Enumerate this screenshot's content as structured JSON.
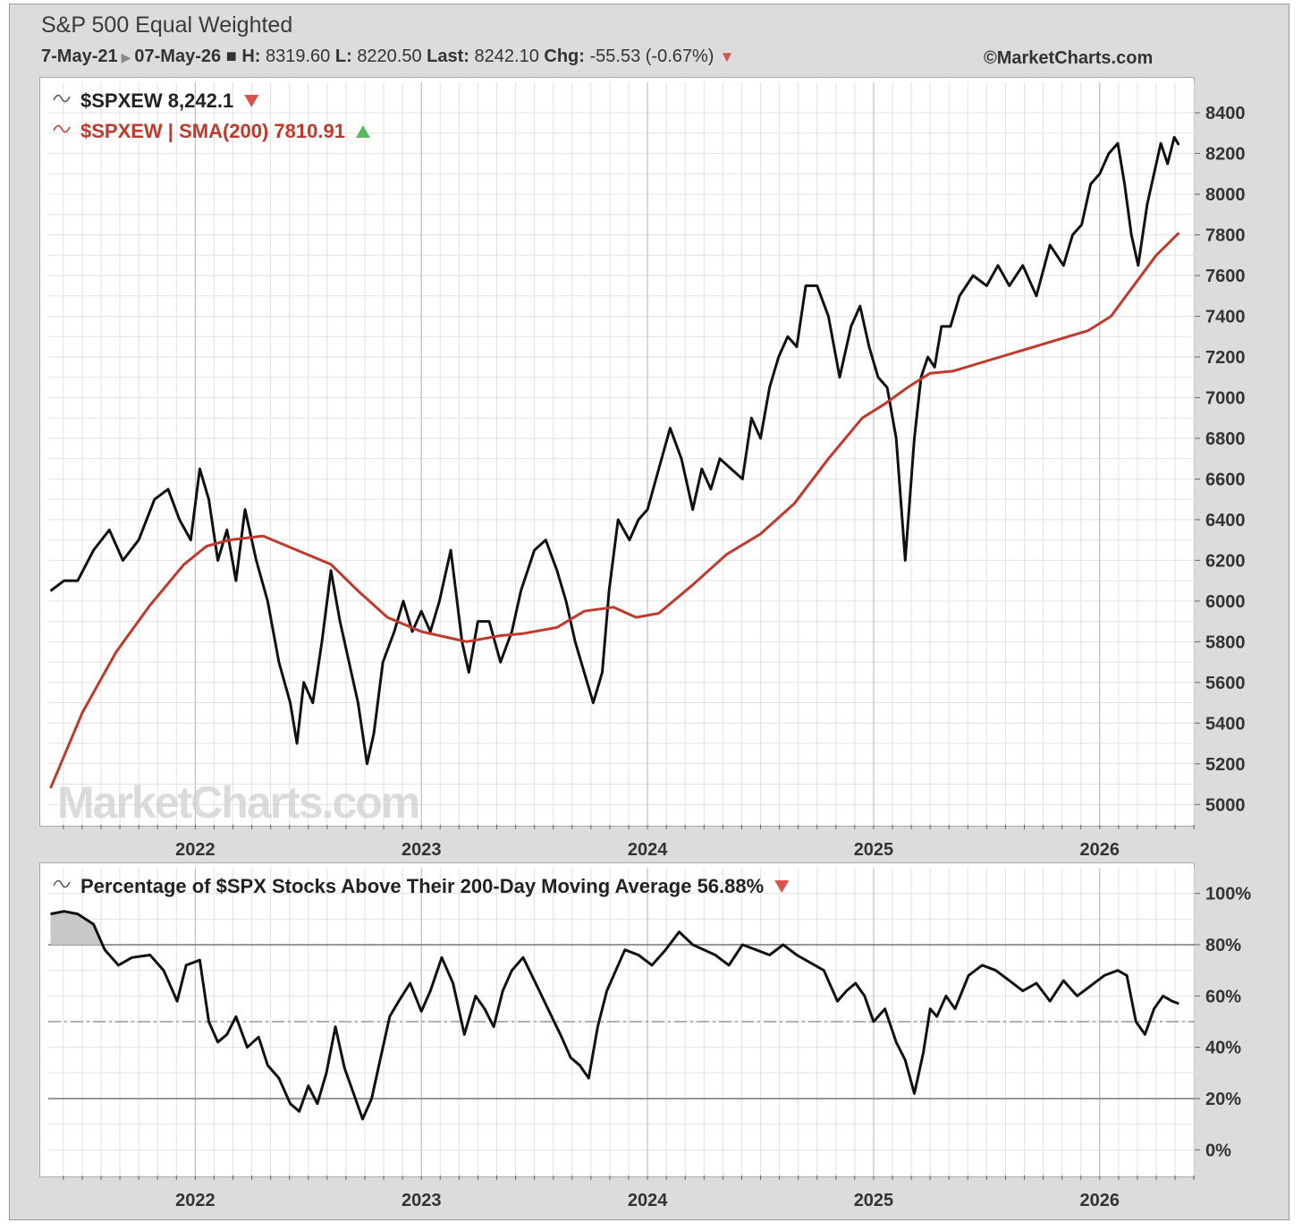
{
  "header": {
    "title": "S&P 500 Equal Weighted",
    "date_start": "7-May-21",
    "date_end": "07-May-26",
    "high_label": "H:",
    "high": "8319.60",
    "low_label": "L:",
    "low": "8220.50",
    "last_label": "Last:",
    "last": "8242.10",
    "chg_label": "Chg:",
    "chg": "-55.53 (-0.67%)",
    "credit": "©MarketCharts.com"
  },
  "watermark": "MarketCharts.com",
  "colors": {
    "price_line": "#111111",
    "sma_line": "#c0392b",
    "down_arrow": "#d9534f",
    "up_arrow": "#5cb85c",
    "grid": "#e2e2e2",
    "major_grid": "#b8b8b8"
  },
  "chart_data": [
    {
      "type": "line",
      "legend": [
        {
          "name": "$SPXEW 8,242.1",
          "color": "#111111",
          "arrow": "down"
        },
        {
          "name": "$SPXEW | SMA(200) 7810.91",
          "color": "#c0392b",
          "arrow": "up"
        }
      ],
      "legend_placement": "top-left",
      "x_ticks": [
        "2022",
        "2023",
        "2024",
        "2025",
        "2026"
      ],
      "y_ticks": [
        5000,
        5200,
        5400,
        5600,
        5800,
        6000,
        6200,
        6400,
        6600,
        6800,
        7000,
        7200,
        7400,
        7600,
        7800,
        8000,
        8200,
        8400
      ],
      "ylim": [
        4900,
        8550
      ],
      "xlim": [
        2021.35,
        2026.42
      ],
      "y_axis_side": "right",
      "grid": true,
      "series": [
        {
          "name": "$SPXEW",
          "x": [
            2021.36,
            2021.42,
            2021.48,
            2021.55,
            2021.62,
            2021.68,
            2021.75,
            2021.82,
            2021.88,
            2021.93,
            2021.98,
            2022.02,
            2022.06,
            2022.1,
            2022.14,
            2022.18,
            2022.22,
            2022.27,
            2022.32,
            2022.37,
            2022.42,
            2022.45,
            2022.48,
            2022.52,
            2022.56,
            2022.6,
            2022.64,
            2022.68,
            2022.72,
            2022.76,
            2022.79,
            2022.83,
            2022.88,
            2022.92,
            2022.96,
            2023.0,
            2023.04,
            2023.08,
            2023.13,
            2023.18,
            2023.21,
            2023.25,
            2023.3,
            2023.35,
            2023.4,
            2023.44,
            2023.5,
            2023.55,
            2023.6,
            2023.64,
            2023.68,
            2023.72,
            2023.76,
            2023.8,
            2023.83,
            2023.87,
            2023.92,
            2023.96,
            2024.0,
            2024.05,
            2024.1,
            2024.15,
            2024.2,
            2024.24,
            2024.28,
            2024.32,
            2024.37,
            2024.42,
            2024.46,
            2024.5,
            2024.54,
            2024.58,
            2024.62,
            2024.66,
            2024.7,
            2024.75,
            2024.8,
            2024.85,
            2024.9,
            2024.94,
            2024.98,
            2025.02,
            2025.06,
            2025.1,
            2025.14,
            2025.18,
            2025.21,
            2025.24,
            2025.27,
            2025.3,
            2025.34,
            2025.38,
            2025.44,
            2025.5,
            2025.55,
            2025.6,
            2025.66,
            2025.72,
            2025.78,
            2025.84,
            2025.88,
            2025.92,
            2025.96,
            2026.0,
            2026.04,
            2026.08,
            2026.11,
            2026.14,
            2026.17,
            2026.21,
            2026.24,
            2026.27,
            2026.3,
            2026.33,
            2026.35
          ],
          "values": [
            6050,
            6100,
            6100,
            6250,
            6350,
            6200,
            6300,
            6500,
            6550,
            6400,
            6300,
            6650,
            6500,
            6200,
            6350,
            6100,
            6450,
            6200,
            6000,
            5700,
            5500,
            5300,
            5600,
            5500,
            5800,
            6150,
            5900,
            5700,
            5500,
            5200,
            5350,
            5700,
            5850,
            6000,
            5850,
            5950,
            5850,
            6000,
            6250,
            5800,
            5650,
            5900,
            5900,
            5700,
            5850,
            6050,
            6250,
            6300,
            6150,
            6000,
            5800,
            5650,
            5500,
            5650,
            6050,
            6400,
            6300,
            6400,
            6450,
            6650,
            6850,
            6700,
            6450,
            6650,
            6550,
            6700,
            6650,
            6600,
            6900,
            6800,
            7050,
            7200,
            7300,
            7250,
            7550,
            7550,
            7400,
            7100,
            7350,
            7450,
            7250,
            7100,
            7050,
            6800,
            6200,
            6800,
            7100,
            7200,
            7150,
            7350,
            7350,
            7500,
            7600,
            7550,
            7650,
            7550,
            7650,
            7500,
            7750,
            7650,
            7800,
            7850,
            8050,
            8100,
            8200,
            8250,
            8050,
            7800,
            7650,
            7950,
            8100,
            8250,
            8150,
            8280,
            8242
          ]
        },
        {
          "name": "SMA(200)",
          "x": [
            2021.36,
            2021.5,
            2021.65,
            2021.8,
            2021.95,
            2022.05,
            2022.15,
            2022.3,
            2022.45,
            2022.6,
            2022.72,
            2022.85,
            2023.0,
            2023.2,
            2023.35,
            2023.45,
            2023.6,
            2023.72,
            2023.85,
            2023.95,
            2024.05,
            2024.2,
            2024.35,
            2024.5,
            2024.65,
            2024.8,
            2024.95,
            2025.05,
            2025.15,
            2025.25,
            2025.35,
            2025.5,
            2025.65,
            2025.8,
            2025.95,
            2026.05,
            2026.15,
            2026.25,
            2026.35
          ],
          "values": [
            5080,
            5450,
            5750,
            5980,
            6180,
            6270,
            6300,
            6320,
            6250,
            6180,
            6050,
            5920,
            5850,
            5800,
            5830,
            5840,
            5870,
            5950,
            5970,
            5920,
            5940,
            6080,
            6230,
            6330,
            6480,
            6700,
            6900,
            6970,
            7050,
            7120,
            7130,
            7180,
            7230,
            7280,
            7330,
            7400,
            7550,
            7700,
            7810
          ]
        }
      ]
    },
    {
      "type": "line",
      "legend": [
        {
          "name": "Percentage of $SPX Stocks Above Their 200-Day Moving Average 56.88%",
          "color": "#111111",
          "arrow": "down"
        }
      ],
      "legend_placement": "top-left",
      "x_ticks": [
        "2022",
        "2023",
        "2024",
        "2025",
        "2026"
      ],
      "y_ticks": [
        "0%",
        "20%",
        "40%",
        "60%",
        "80%",
        "100%"
      ],
      "y_tick_values": [
        0,
        20,
        40,
        60,
        80,
        100
      ],
      "ylim": [
        -10,
        110
      ],
      "xlim": [
        2021.35,
        2026.42
      ],
      "y_axis_side": "right",
      "reference_lines": [
        80,
        50,
        20
      ],
      "grid": true,
      "series": [
        {
          "name": "Percentage of $SPX Stocks Above Their 200-Day Moving Average",
          "x": [
            2021.36,
            2021.42,
            2021.48,
            2021.55,
            2021.6,
            2021.66,
            2021.72,
            2021.8,
            2021.86,
            2021.92,
            2021.96,
            2022.02,
            2022.06,
            2022.1,
            2022.14,
            2022.18,
            2022.23,
            2022.28,
            2022.32,
            2022.37,
            2022.42,
            2022.46,
            2022.5,
            2022.54,
            2022.58,
            2022.62,
            2022.66,
            2022.7,
            2022.74,
            2022.78,
            2022.82,
            2022.86,
            2022.9,
            2022.95,
            2023.0,
            2023.04,
            2023.09,
            2023.14,
            2023.19,
            2023.24,
            2023.28,
            2023.32,
            2023.36,
            2023.4,
            2023.45,
            2023.5,
            2023.56,
            2023.62,
            2023.66,
            2023.7,
            2023.74,
            2023.78,
            2023.82,
            2023.86,
            2023.9,
            2023.96,
            2024.02,
            2024.08,
            2024.14,
            2024.2,
            2024.25,
            2024.3,
            2024.36,
            2024.42,
            2024.48,
            2024.54,
            2024.6,
            2024.66,
            2024.72,
            2024.78,
            2024.84,
            2024.88,
            2024.92,
            2024.96,
            2025.0,
            2025.05,
            2025.1,
            2025.14,
            2025.18,
            2025.22,
            2025.25,
            2025.28,
            2025.32,
            2025.36,
            2025.42,
            2025.48,
            2025.54,
            2025.6,
            2025.66,
            2025.72,
            2025.78,
            2025.84,
            2025.9,
            2025.96,
            2026.02,
            2026.08,
            2026.12,
            2026.16,
            2026.2,
            2026.24,
            2026.28,
            2026.32,
            2026.35
          ],
          "values": [
            92,
            93,
            92,
            88,
            78,
            72,
            75,
            76,
            70,
            58,
            72,
            74,
            50,
            42,
            45,
            52,
            40,
            44,
            33,
            28,
            18,
            15,
            25,
            18,
            30,
            48,
            32,
            22,
            12,
            20,
            36,
            52,
            58,
            65,
            54,
            62,
            75,
            65,
            45,
            60,
            55,
            48,
            62,
            70,
            75,
            66,
            55,
            44,
            36,
            33,
            28,
            48,
            62,
            70,
            78,
            76,
            72,
            78,
            85,
            80,
            78,
            76,
            72,
            80,
            78,
            76,
            80,
            76,
            73,
            70,
            58,
            62,
            65,
            60,
            50,
            55,
            42,
            35,
            22,
            38,
            55,
            52,
            60,
            55,
            68,
            72,
            70,
            66,
            62,
            65,
            58,
            66,
            60,
            64,
            68,
            70,
            68,
            50,
            45,
            55,
            60,
            58,
            57
          ]
        }
      ]
    }
  ]
}
